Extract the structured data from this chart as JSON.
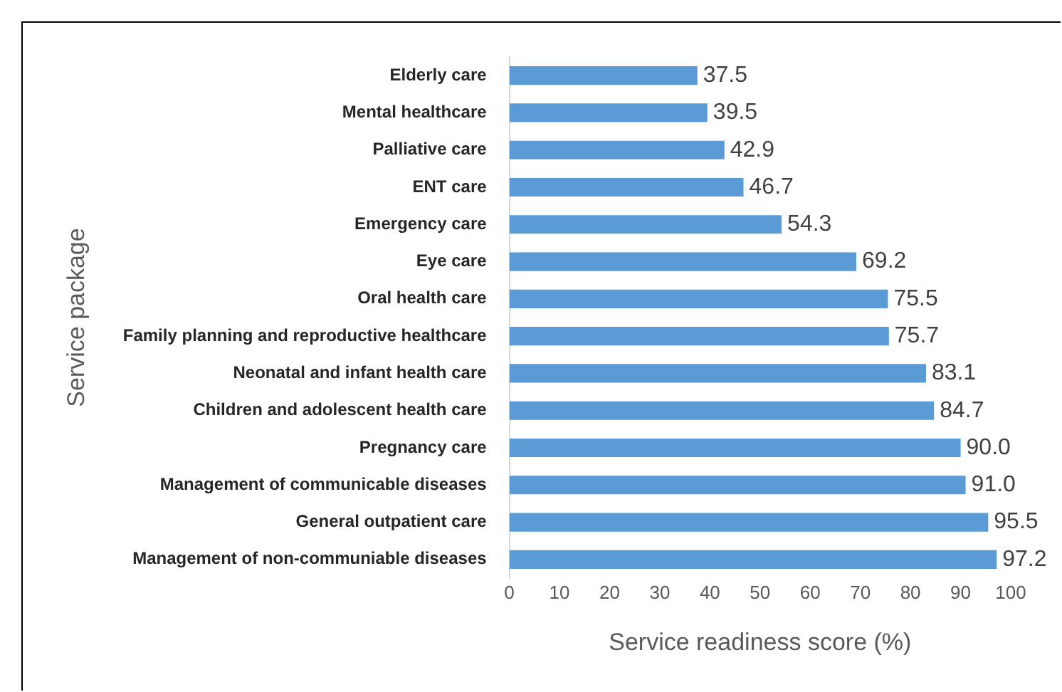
{
  "chart_data": {
    "type": "bar",
    "orientation": "horizontal",
    "xlabel": "Service readiness score (%)",
    "ylabel": "Service package",
    "categories": [
      "Elderly care",
      "Mental healthcare",
      "Palliative care",
      "ENT care",
      "Emergency care",
      "Eye care",
      "Oral health care",
      "Family planning and reproductive healthcare",
      "Neonatal and infant health care",
      "Children and adolescent health care",
      "Pregnancy care",
      "Management of communicable diseases",
      "General outpatient care",
      "Management of non-communiable diseases"
    ],
    "values": [
      37.5,
      39.5,
      42.9,
      46.7,
      54.3,
      69.2,
      75.5,
      75.7,
      83.1,
      84.7,
      90.0,
      91.0,
      95.5,
      97.2
    ],
    "color": "#5b9bd5",
    "xlim": [
      0,
      100
    ],
    "xticks": [
      0,
      10,
      20,
      30,
      40,
      50,
      60,
      70,
      80,
      90,
      100
    ],
    "value_labels": [
      "37.5",
      "39.5",
      "42.9",
      "46.7",
      "54.3",
      "69.2",
      "75.5",
      "75.7",
      "83.1",
      "84.7",
      "90.0",
      "91.0",
      "95.5",
      "97.2"
    ],
    "grid": false,
    "legend": false
  }
}
